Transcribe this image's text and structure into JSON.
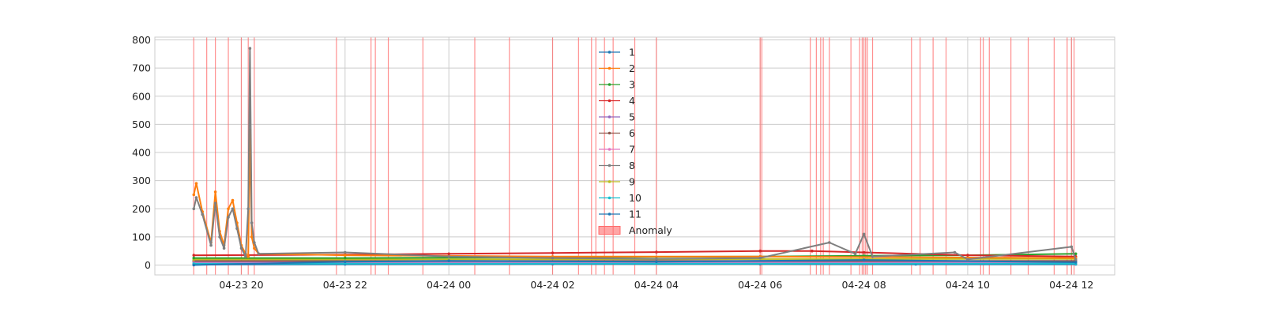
{
  "chart_data": {
    "type": "line",
    "title": "",
    "xlabel": "",
    "ylabel": "",
    "x_axis": {
      "type": "datetime",
      "range": [
        "2023-04-23 18:20",
        "2023-04-24 12:50"
      ],
      "tick_values": [
        "2023-04-23 20:00",
        "2023-04-23 22:00",
        "2023-04-24 00:00",
        "2023-04-24 02:00",
        "2023-04-24 04:00",
        "2023-04-24 06:00",
        "2023-04-24 08:00",
        "2023-04-24 10:00",
        "2023-04-24 12:00"
      ],
      "tick_labels": [
        "04-23 20",
        "04-23 22",
        "04-24 00",
        "04-24 02",
        "04-24 04",
        "04-24 06",
        "04-24 08",
        "04-24 10",
        "04-24 12"
      ]
    },
    "y_axis": {
      "range": [
        -35,
        810
      ],
      "tick_values": [
        0,
        100,
        200,
        300,
        400,
        500,
        600,
        700,
        800
      ],
      "tick_labels": [
        "0",
        "100",
        "200",
        "300",
        "400",
        "500",
        "600",
        "700",
        "800"
      ]
    },
    "grid": true,
    "legend_position": "top-center",
    "series": [
      {
        "name": "1",
        "color": "#1f77b4",
        "points": [
          [
            "2023-04-23 19:05",
            2
          ],
          [
            "2023-04-23 22:00",
            3
          ],
          [
            "2023-04-24 02:00",
            4
          ],
          [
            "2023-04-24 06:00",
            4
          ],
          [
            "2023-04-24 09:00",
            3
          ],
          [
            "2023-04-24 12:05",
            3
          ]
        ]
      },
      {
        "name": "2",
        "color": "#ff7f0e",
        "points": [
          [
            "2023-04-23 19:05",
            250
          ],
          [
            "2023-04-23 19:08",
            290
          ],
          [
            "2023-04-23 19:15",
            190
          ],
          [
            "2023-04-23 19:25",
            80
          ],
          [
            "2023-04-23 19:30",
            260
          ],
          [
            "2023-04-23 19:35",
            120
          ],
          [
            "2023-04-23 19:40",
            70
          ],
          [
            "2023-04-23 19:45",
            200
          ],
          [
            "2023-04-23 19:50",
            230
          ],
          [
            "2023-04-23 19:55",
            150
          ],
          [
            "2023-04-23 20:00",
            70
          ],
          [
            "2023-04-23 20:05",
            40
          ],
          [
            "2023-04-23 20:08",
            30
          ],
          [
            "2023-04-23 20:10",
            480
          ],
          [
            "2023-04-23 20:12",
            100
          ],
          [
            "2023-04-23 20:15",
            60
          ],
          [
            "2023-04-23 20:20",
            40
          ],
          [
            "2023-04-23 22:00",
            35
          ],
          [
            "2023-04-24 02:00",
            30
          ],
          [
            "2023-04-24 06:00",
            30
          ],
          [
            "2023-04-24 12:05",
            25
          ]
        ]
      },
      {
        "name": "3",
        "color": "#2ca02c",
        "points": [
          [
            "2023-04-23 19:05",
            25
          ],
          [
            "2023-04-23 22:00",
            25
          ],
          [
            "2023-04-24 02:00",
            28
          ],
          [
            "2023-04-24 06:00",
            30
          ],
          [
            "2023-04-24 08:00",
            33
          ],
          [
            "2023-04-24 10:00",
            35
          ],
          [
            "2023-04-24 12:05",
            40
          ]
        ]
      },
      {
        "name": "4",
        "color": "#d62728",
        "points": [
          [
            "2023-04-23 19:05",
            35
          ],
          [
            "2023-04-23 22:00",
            37
          ],
          [
            "2023-04-24 00:00",
            40
          ],
          [
            "2023-04-24 02:00",
            43
          ],
          [
            "2023-04-24 04:00",
            46
          ],
          [
            "2023-04-24 06:00",
            50
          ],
          [
            "2023-04-24 07:00",
            50
          ],
          [
            "2023-04-24 08:00",
            45
          ],
          [
            "2023-04-24 10:00",
            35
          ],
          [
            "2023-04-24 12:05",
            30
          ]
        ]
      },
      {
        "name": "5",
        "color": "#9467bd",
        "points": [
          [
            "2023-04-23 19:05",
            10
          ],
          [
            "2023-04-24 12:05",
            10
          ]
        ]
      },
      {
        "name": "6",
        "color": "#8c564b",
        "points": [
          [
            "2023-04-23 19:05",
            15
          ],
          [
            "2023-04-24 12:05",
            15
          ]
        ]
      },
      {
        "name": "7",
        "color": "#e377c2",
        "points": [
          [
            "2023-04-23 19:05",
            8
          ],
          [
            "2023-04-24 12:05",
            8
          ]
        ]
      },
      {
        "name": "8",
        "color": "#7f7f7f",
        "points": [
          [
            "2023-04-23 19:05",
            200
          ],
          [
            "2023-04-23 19:08",
            240
          ],
          [
            "2023-04-23 19:15",
            180
          ],
          [
            "2023-04-23 19:25",
            70
          ],
          [
            "2023-04-23 19:30",
            220
          ],
          [
            "2023-04-23 19:35",
            100
          ],
          [
            "2023-04-23 19:40",
            60
          ],
          [
            "2023-04-23 19:45",
            170
          ],
          [
            "2023-04-23 19:50",
            200
          ],
          [
            "2023-04-23 19:55",
            130
          ],
          [
            "2023-04-23 20:00",
            60
          ],
          [
            "2023-04-23 20:05",
            30
          ],
          [
            "2023-04-23 20:08",
            200
          ],
          [
            "2023-04-23 20:10",
            770
          ],
          [
            "2023-04-23 20:12",
            150
          ],
          [
            "2023-04-23 20:15",
            80
          ],
          [
            "2023-04-23 20:20",
            40
          ],
          [
            "2023-04-23 22:00",
            45
          ],
          [
            "2023-04-24 00:00",
            30
          ],
          [
            "2023-04-24 02:00",
            25
          ],
          [
            "2023-04-24 04:00",
            22
          ],
          [
            "2023-04-24 06:00",
            25
          ],
          [
            "2023-04-24 07:20",
            80
          ],
          [
            "2023-04-24 07:50",
            40
          ],
          [
            "2023-04-24 08:00",
            110
          ],
          [
            "2023-04-24 08:10",
            30
          ],
          [
            "2023-04-24 09:45",
            45
          ],
          [
            "2023-04-24 10:00",
            20
          ],
          [
            "2023-04-24 12:00",
            65
          ],
          [
            "2023-04-24 12:05",
            20
          ]
        ]
      },
      {
        "name": "9",
        "color": "#bcbd22",
        "points": [
          [
            "2023-04-23 19:05",
            20
          ],
          [
            "2023-04-24 12:05",
            22
          ]
        ]
      },
      {
        "name": "10",
        "color": "#17becf",
        "points": [
          [
            "2023-04-23 19:05",
            5
          ],
          [
            "2023-04-24 12:05",
            5
          ]
        ]
      },
      {
        "name": "11",
        "color": "#1f77b4",
        "points": [
          [
            "2023-04-23 19:05",
            0
          ],
          [
            "2023-04-23 22:00",
            12
          ],
          [
            "2023-04-24 00:00",
            15
          ],
          [
            "2023-04-24 04:00",
            12
          ],
          [
            "2023-04-24 08:00",
            18
          ],
          [
            "2023-04-24 12:05",
            10
          ]
        ]
      }
    ],
    "anomaly": {
      "name": "Anomaly",
      "color": "#ff6b6b",
      "times": [
        "2023-04-23 19:05",
        "2023-04-23 19:20",
        "2023-04-23 19:30",
        "2023-04-23 19:45",
        "2023-04-23 20:00",
        "2023-04-23 20:08",
        "2023-04-23 20:15",
        "2023-04-23 21:50",
        "2023-04-23 22:30",
        "2023-04-23 22:35",
        "2023-04-23 22:50",
        "2023-04-23 23:30",
        "2023-04-24 00:30",
        "2023-04-24 01:10",
        "2023-04-24 02:00",
        "2023-04-24 02:30",
        "2023-04-24 02:45",
        "2023-04-24 02:50",
        "2023-04-24 03:00",
        "2023-04-24 03:10",
        "2023-04-24 03:35",
        "2023-04-24 04:00",
        "2023-04-24 06:00",
        "2023-04-24 06:02",
        "2023-04-24 06:58",
        "2023-04-24 07:05",
        "2023-04-24 07:10",
        "2023-04-24 07:13",
        "2023-04-24 07:20",
        "2023-04-24 07:45",
        "2023-04-24 07:55",
        "2023-04-24 07:58",
        "2023-04-24 08:00",
        "2023-04-24 08:02",
        "2023-04-24 08:04",
        "2023-04-24 08:10",
        "2023-04-24 08:55",
        "2023-04-24 09:05",
        "2023-04-24 09:20",
        "2023-04-24 09:35",
        "2023-04-24 10:15",
        "2023-04-24 10:18",
        "2023-04-24 10:25",
        "2023-04-24 10:50",
        "2023-04-24 11:10",
        "2023-04-24 11:40",
        "2023-04-24 11:55",
        "2023-04-24 12:00",
        "2023-04-24 12:03"
      ]
    }
  }
}
